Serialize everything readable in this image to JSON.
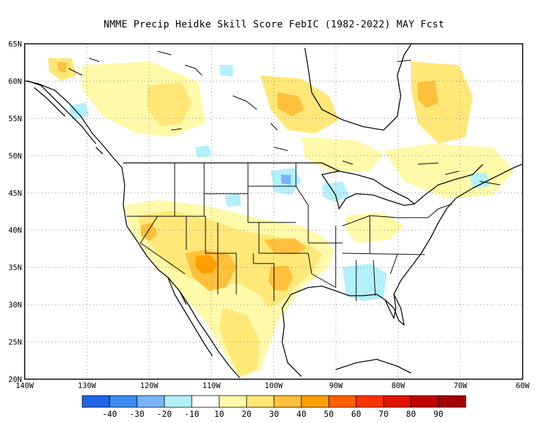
{
  "title": "NMME Precip Heidke Skill Score FebIC (1982-2022) MAY Fcst",
  "lat_labels": [
    "65N",
    "60N",
    "55N",
    "50N",
    "45N",
    "40N",
    "35N",
    "30N",
    "25N",
    "20N"
  ],
  "lon_labels": [
    "140W",
    "130W",
    "120W",
    "110W",
    "100W",
    "90W",
    "80W",
    "70W",
    "60W"
  ],
  "colorbar": {
    "colors": [
      "#1e64e6",
      "#3c8cf0",
      "#78b4f5",
      "#b4f0fa",
      "#ffffff",
      "#fffaaa",
      "#ffe878",
      "#ffc03c",
      "#ffa000",
      "#ff6000",
      "#ff3200",
      "#e11400",
      "#c00000",
      "#a50000"
    ],
    "labels": [
      "-40",
      "-30",
      "-20",
      "-10",
      "10",
      "20",
      "30",
      "40",
      "50",
      "60",
      "70",
      "80",
      "90"
    ]
  },
  "map_colors": {
    "positive_10_20": "#fffaaa",
    "positive_20_30": "#ffe878",
    "positive_30_40": "#ffc03c",
    "positive_40_50": "#ffa000",
    "negative_m10_m20": "#b4f0fa",
    "negative_m20_m30": "#78b4f5"
  }
}
